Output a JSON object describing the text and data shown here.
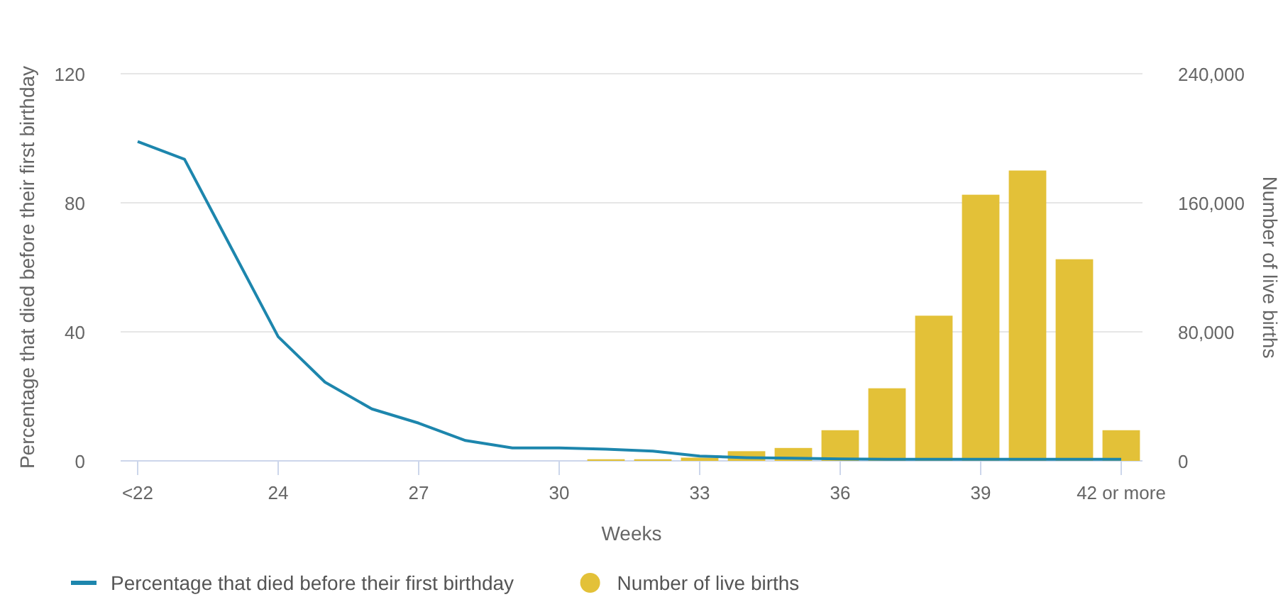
{
  "chart_data": {
    "type": "bar",
    "xlabel": "Weeks",
    "ylabel": "Percentage that died before their first birthday",
    "y2label": "Number of live births",
    "categories": [
      "<22",
      null,
      null,
      "24",
      null,
      null,
      "27",
      null,
      null,
      "30",
      null,
      null,
      "33",
      null,
      null,
      "36",
      null,
      null,
      "39",
      null,
      null,
      "42 or more"
    ],
    "series": [
      {
        "name": "Percentage that died before their first birthday",
        "type": "line",
        "color": "#1d86ad",
        "values": [
          99,
          93.5,
          66,
          38.5,
          24.4,
          16.1,
          11.7,
          6.3,
          4,
          4,
          3.6,
          3,
          1.5,
          1,
          0.8,
          0.6,
          0.5,
          0.5,
          0.5,
          0.5,
          0.5,
          0.5
        ]
      },
      {
        "name": "Number of live births",
        "axis": "y2",
        "color": "#e3c138",
        "values": [
          null,
          null,
          null,
          null,
          null,
          null,
          null,
          null,
          null,
          null,
          1000,
          1000,
          2000,
          6000,
          8000,
          19000,
          45000,
          90000,
          165000,
          180000,
          125000,
          19000
        ]
      }
    ],
    "ylim": [
      0,
      120
    ],
    "yticks": [
      0,
      40,
      80,
      120
    ],
    "y2lim": [
      0,
      240000
    ],
    "y2ticks": [
      0,
      {
        "value": 80000,
        "label": "80,000"
      },
      {
        "value": 160000,
        "label": "160,000"
      },
      {
        "value": 240000,
        "label": "240,000"
      }
    ],
    "grid": "y",
    "legend": "bottom"
  }
}
